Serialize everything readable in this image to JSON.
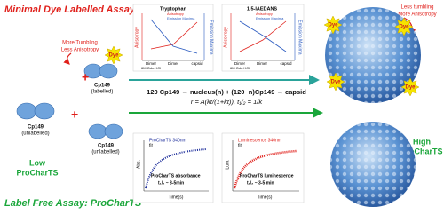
{
  "header": {
    "title": "Minimal Dye Labelled Assay",
    "footer": "Label Free Assay: ProCharTS"
  },
  "notes": {
    "left_1": "More Tumbling",
    "left_2": "Less Anisotropy",
    "right_1": "Less tumbling",
    "right_2": "More Anisotropy"
  },
  "proteins": [
    {
      "name": "Cp149",
      "state": "(labelled)"
    },
    {
      "name": "Cp149",
      "state": "(unlabelled)"
    },
    {
      "name": "Cp149",
      "state": "(unlabelled)"
    }
  ],
  "levels": {
    "low_1": "Low",
    "low_2": "ProCharTS",
    "high_1": "High",
    "high_2": "ProCharTS"
  },
  "dye": "Dye",
  "equations": {
    "assembly": "120 Cp149 → nucleus(n) + (120−n)Cp149 → capsid",
    "rate": "r = A(kt/(1+kt)),  t₁/₂ = 1/k"
  },
  "top_charts": [
    {
      "title": "Tryptophan",
      "y_left": "Anisotropy",
      "y_right": "Emission Maxima",
      "legend": [
        "Anisotropy",
        "Emission Maxima"
      ],
      "categories": [
        "Dimer",
        "Dimer",
        "capsid"
      ],
      "sub": "6M Gdn.HCl"
    },
    {
      "title": "1,5-IAEDANS",
      "y_left": "Anisotropy",
      "y_right": "Emission Maxima",
      "legend": [
        "Anisotropy",
        "Emission Maxima"
      ],
      "categories": [
        "Dimer",
        "Dimer",
        "capsid"
      ],
      "sub": "6M Gdn.HCl"
    }
  ],
  "bottom_charts": [
    {
      "legend": [
        "ProCharTS 340nm",
        "fit"
      ],
      "y_label": "Abs.",
      "x_label": "Time(s)",
      "caption": "ProCharTS absorbance",
      "half": "t₁/₂ ~ 3-5min"
    },
    {
      "legend": [
        "Luminescence 340nm",
        "fit"
      ],
      "y_label": "Lum.",
      "x_label": "Time(s)",
      "caption": "ProCharTS luminescence",
      "half": "t₁/₂ ~ 3-5 min"
    }
  ]
}
